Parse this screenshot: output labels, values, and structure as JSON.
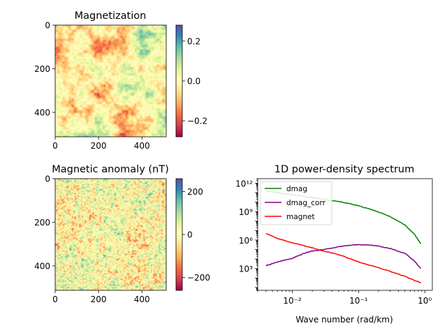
{
  "chart_data": [
    {
      "type": "heatmap",
      "title": "Magnetization",
      "x_ticks": [
        0,
        200,
        400
      ],
      "y_ticks": [
        0,
        200,
        400
      ],
      "xlim": [
        0,
        512
      ],
      "ylim": [
        512,
        0
      ],
      "colormap": "Spectral",
      "value_range": [
        -0.28,
        0.28
      ],
      "colorbar_ticks": [
        0.2,
        0.0,
        -0.2
      ],
      "colorbar_tick_labels": [
        "0.2",
        "0.0",
        "−0.2"
      ]
    },
    {
      "type": "heatmap",
      "title": "Magnetic anomaly (nT)",
      "x_ticks": [
        0,
        200,
        400
      ],
      "y_ticks": [
        0,
        200,
        400
      ],
      "xlim": [
        0,
        512
      ],
      "ylim": [
        512,
        0
      ],
      "colormap": "Spectral",
      "value_range": [
        -260,
        260
      ],
      "colorbar_ticks": [
        200,
        0,
        -200
      ],
      "colorbar_tick_labels": [
        "200",
        "0",
        "−200"
      ]
    },
    {
      "type": "line",
      "title": "1D power-density spectrum",
      "xlabel": "Wave number (rad/km)",
      "ylabel": "",
      "x_scale": "log",
      "y_scale": "log",
      "xlim": [
        0.003,
        1.3
      ],
      "ylim": [
        5,
        3000000000000.0
      ],
      "x_ticks": [
        0.01,
        0.1,
        1
      ],
      "x_tick_labels": [
        "10⁻²",
        "10⁻¹",
        "10⁰"
      ],
      "y_ticks": [
        1000,
        1000000,
        1000000000,
        1000000000000
      ],
      "y_tick_labels": [
        "10³",
        "10⁶",
        "10⁹",
        "10¹²"
      ],
      "legend_position": "top-left",
      "series": [
        {
          "name": "dmag",
          "color": "#008000",
          "x": [
            0.004,
            0.006,
            0.01,
            0.02,
            0.03,
            0.05,
            0.08,
            0.1,
            0.15,
            0.2,
            0.3,
            0.5,
            0.7,
            0.87
          ],
          "y": [
            150000000000.0,
            100000000000.0,
            60000000000.0,
            30000000000.0,
            20000000000.0,
            12000000000.0,
            6000000000.0,
            4000000000.0,
            1800000000.0,
            900000000.0,
            300000000.0,
            40000000.0,
            4000000.0,
            400000.0
          ]
        },
        {
          "name": "dmag_corr",
          "color": "#800080",
          "x": [
            0.004,
            0.006,
            0.01,
            0.015,
            0.02,
            0.03,
            0.05,
            0.08,
            0.1,
            0.15,
            0.2,
            0.3,
            0.5,
            0.7,
            0.87
          ],
          "y": [
            2000,
            5000,
            12000,
            40000,
            70000,
            100000,
            200000,
            300000,
            320000,
            300000,
            230000,
            130000,
            40000,
            6000,
            1000
          ]
        },
        {
          "name": "magnet",
          "color": "#ff0000",
          "x": [
            0.004,
            0.006,
            0.01,
            0.02,
            0.03,
            0.05,
            0.1,
            0.2,
            0.3,
            0.5,
            0.87
          ],
          "y": [
            5000000,
            1500000,
            500000,
            150000,
            70000,
            30000,
            5000,
            1200,
            500,
            150,
            30
          ]
        }
      ]
    }
  ]
}
